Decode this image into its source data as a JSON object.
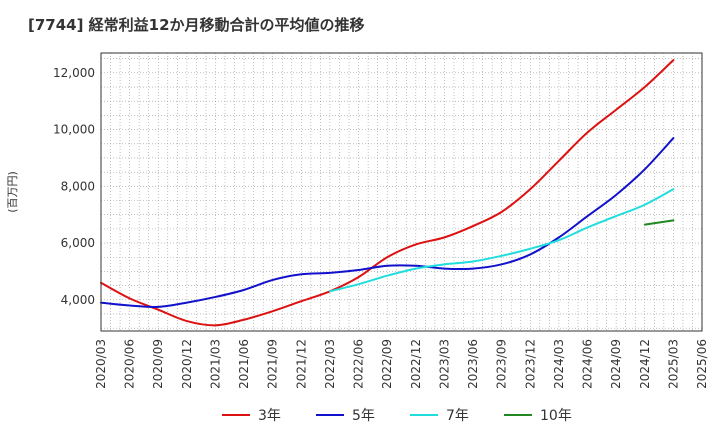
{
  "chart_data": {
    "type": "line",
    "title": "[7744]  経常利益12か月移動合計の平均値の推移",
    "ylabel": "(百万円)",
    "xlabel": "",
    "grid": true,
    "legend_position": "bottom",
    "ylim": [
      2900,
      12700
    ],
    "yticks": [
      4000,
      6000,
      8000,
      10000,
      12000
    ],
    "ytick_labels": [
      "4,000",
      "6,000",
      "8,000",
      "10,000",
      "12,000"
    ],
    "xticks": [
      "2020/03",
      "2020/06",
      "2020/09",
      "2020/12",
      "2021/03",
      "2021/06",
      "2021/09",
      "2021/12",
      "2022/03",
      "2022/06",
      "2022/09",
      "2022/12",
      "2023/03",
      "2023/06",
      "2023/09",
      "2023/12",
      "2024/03",
      "2024/06",
      "2024/09",
      "2024/12",
      "2025/03",
      "2025/06"
    ],
    "series": [
      {
        "name": "3年",
        "color": "#dd1111",
        "x": [
          "2020/03",
          "2020/06",
          "2020/09",
          "2020/12",
          "2021/03",
          "2021/06",
          "2021/09",
          "2021/12",
          "2022/03",
          "2022/06",
          "2022/09",
          "2022/12",
          "2023/03",
          "2023/06",
          "2023/09",
          "2023/12",
          "2024/03",
          "2024/06",
          "2024/09",
          "2024/12",
          "2025/03"
        ],
        "values": [
          4600,
          4050,
          3650,
          3250,
          3100,
          3300,
          3600,
          3950,
          4300,
          4800,
          5500,
          5950,
          6200,
          6600,
          7100,
          7900,
          8900,
          9900,
          10700,
          11500,
          12450
        ]
      },
      {
        "name": "5年",
        "color": "#1111cc",
        "x": [
          "2020/03",
          "2020/06",
          "2020/09",
          "2020/12",
          "2021/03",
          "2021/06",
          "2021/09",
          "2021/12",
          "2022/03",
          "2022/06",
          "2022/09",
          "2022/12",
          "2023/03",
          "2023/06",
          "2023/09",
          "2023/12",
          "2024/03",
          "2024/06",
          "2024/09",
          "2024/12",
          "2025/03"
        ],
        "values": [
          3900,
          3800,
          3750,
          3900,
          4100,
          4350,
          4700,
          4900,
          4950,
          5050,
          5200,
          5200,
          5100,
          5100,
          5250,
          5600,
          6200,
          6950,
          7700,
          8600,
          9700
        ]
      },
      {
        "name": "7年",
        "color": "#22dddd",
        "x": [
          "2022/03",
          "2022/06",
          "2022/09",
          "2022/12",
          "2023/03",
          "2023/06",
          "2023/09",
          "2023/12",
          "2024/03",
          "2024/06",
          "2024/09",
          "2024/12",
          "2025/03"
        ],
        "values": [
          4300,
          4550,
          4850,
          5100,
          5250,
          5350,
          5550,
          5800,
          6100,
          6550,
          6950,
          7350,
          7900
        ]
      },
      {
        "name": "10年",
        "color": "#228822",
        "x": [
          "2024/12",
          "2025/03"
        ],
        "values": [
          6650,
          6800
        ]
      }
    ]
  }
}
